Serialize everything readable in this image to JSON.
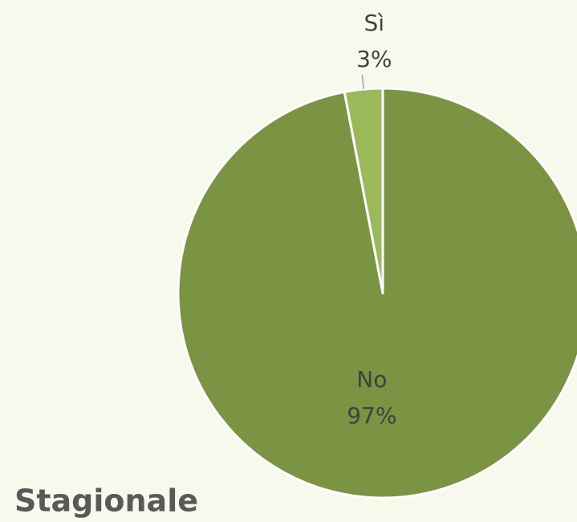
{
  "chart_data": {
    "type": "pie",
    "title": "Stagionale",
    "categories": [
      "No",
      "Sì"
    ],
    "values": [
      97,
      3
    ],
    "value_labels": [
      "97%",
      "3%"
    ],
    "colors": [
      "#7a9444",
      "#9bb85a"
    ]
  }
}
